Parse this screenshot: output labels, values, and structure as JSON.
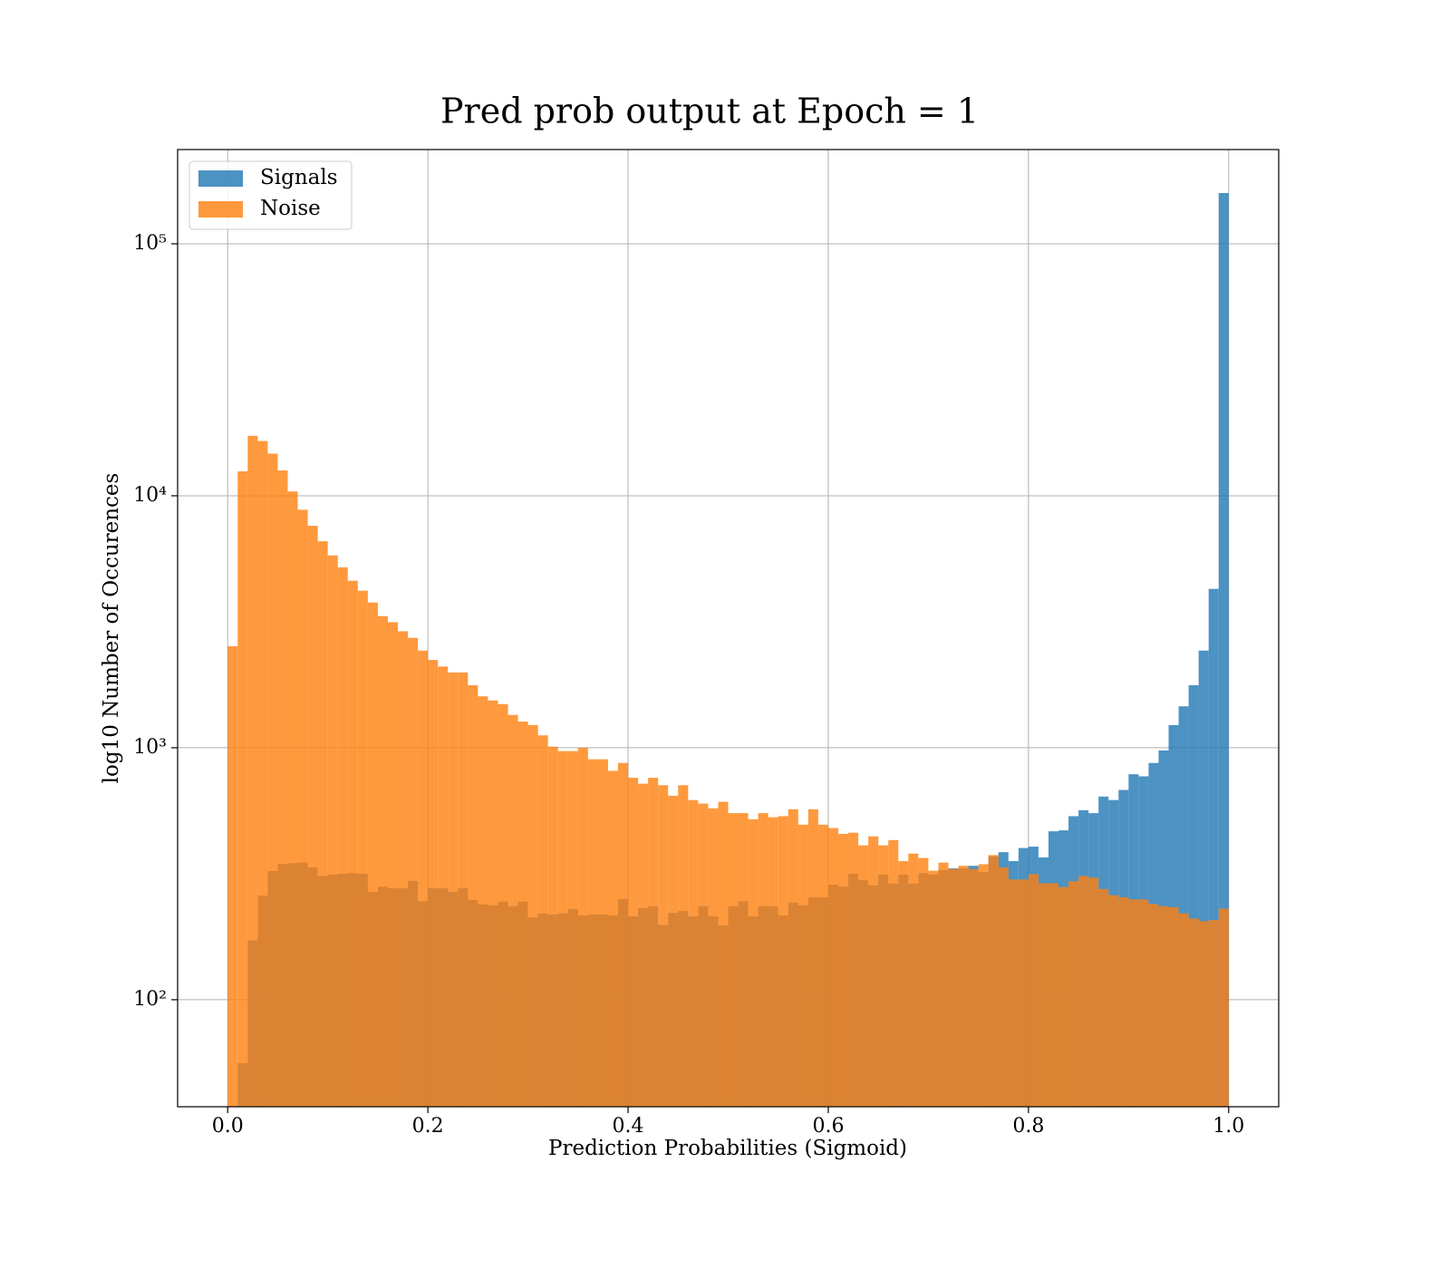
{
  "chart_data": {
    "type": "histogram",
    "title": "Pred prob output at Epoch = 1",
    "x_label": "Prediction Probabilities (Sigmoid)",
    "y_label": "log10 Number of Occurences",
    "log_y": true,
    "grid": true,
    "legend": "upper left",
    "xlim": [
      -0.05,
      1.05
    ],
    "ylim": [
      37.6,
      236600
    ],
    "xticks": [
      {
        "value": 0,
        "label": "0.0"
      },
      0.2,
      0.4,
      0.6,
      0.8,
      {
        "value": 1,
        "label": "1.0"
      }
    ],
    "yticks": [
      {
        "value": 100,
        "label": "10²"
      },
      {
        "value": 1000,
        "label": "10³"
      },
      {
        "value": 10000,
        "label": "10⁴"
      },
      {
        "value": 100000,
        "label": "10⁵"
      }
    ],
    "bins": [
      0,
      0.01,
      0.02,
      0.03,
      0.04,
      0.05,
      0.06,
      0.07,
      0.08,
      0.09,
      0.1,
      0.11,
      0.12,
      0.13,
      0.14,
      0.15,
      0.16,
      0.17,
      0.18,
      0.19,
      0.2,
      0.21,
      0.22,
      0.23,
      0.24,
      0.25,
      0.26,
      0.27,
      0.28,
      0.29,
      0.3,
      0.31,
      0.32,
      0.33,
      0.34,
      0.35,
      0.36,
      0.37,
      0.38,
      0.39,
      0.4,
      0.41,
      0.42,
      0.43,
      0.44,
      0.45,
      0.46,
      0.47,
      0.48,
      0.49,
      0.5,
      0.51,
      0.52,
      0.53,
      0.54,
      0.55,
      0.56,
      0.57,
      0.58,
      0.59,
      0.6,
      0.61,
      0.62,
      0.63,
      0.64,
      0.65,
      0.66,
      0.67,
      0.68,
      0.69,
      0.7,
      0.71,
      0.72,
      0.73,
      0.74,
      0.75,
      0.76,
      0.77,
      0.78,
      0.79,
      0.8,
      0.81,
      0.82,
      0.83,
      0.84,
      0.85,
      0.86,
      0.87,
      0.88,
      0.89,
      0.9,
      0.91,
      0.92,
      0.93,
      0.94,
      0.95,
      0.96,
      0.97,
      0.98,
      0.99,
      1
    ],
    "series": [
      {
        "name": "Signals",
        "color": "#1f77b4",
        "values": [
          30,
          56,
          172,
          259,
          324,
          346,
          348,
          350,
          335,
          310,
          314,
          316,
          318,
          316,
          268,
          281,
          277,
          277,
          296,
          246,
          277,
          277,
          268,
          277,
          249,
          239,
          237,
          245,
          235,
          245,
          212,
          220,
          218,
          220,
          229,
          216,
          218,
          218,
          216,
          251,
          214,
          231,
          235,
          198,
          221,
          225,
          214,
          235,
          214,
          197,
          235,
          246,
          214,
          235,
          235,
          216,
          243,
          237,
          255,
          255,
          286,
          281,
          316,
          298,
          284,
          314,
          289,
          314,
          289,
          318,
          314,
          327,
          332,
          332,
          340,
          321,
          370,
          385,
          355,
          400,
          405,
          367,
          466,
          470,
          535,
          565,
          550,
          640,
          620,
          680,
          785,
          770,
          870,
          975,
          1230,
          1460,
          1770,
          2430,
          4270,
          159000
        ]
      },
      {
        "name": "Noise",
        "color": "#ff7f0e",
        "values": [
          2530,
          12500,
          17300,
          16500,
          14700,
          12600,
          10400,
          8800,
          7600,
          6600,
          5800,
          5200,
          4600,
          4200,
          3770,
          3330,
          3150,
          2900,
          2730,
          2430,
          2230,
          2100,
          1990,
          1990,
          1770,
          1600,
          1540,
          1490,
          1350,
          1270,
          1230,
          1120,
          1010,
          970,
          970,
          1000,
          900,
          900,
          810,
          870,
          760,
          720,
          760,
          710,
          645,
          710,
          620,
          600,
          575,
          610,
          550,
          550,
          520,
          550,
          530,
          535,
          570,
          495,
          570,
          495,
          480,
          455,
          460,
          410,
          445,
          410,
          430,
          355,
          380,
          365,
          325,
          350,
          330,
          340,
          330,
          345,
          375,
          335,
          300,
          300,
          315,
          290,
          290,
          280,
          295,
          310,
          305,
          275,
          260,
          255,
          250,
          250,
          240,
          235,
          233,
          220,
          210,
          205,
          207,
          230
        ]
      }
    ]
  }
}
